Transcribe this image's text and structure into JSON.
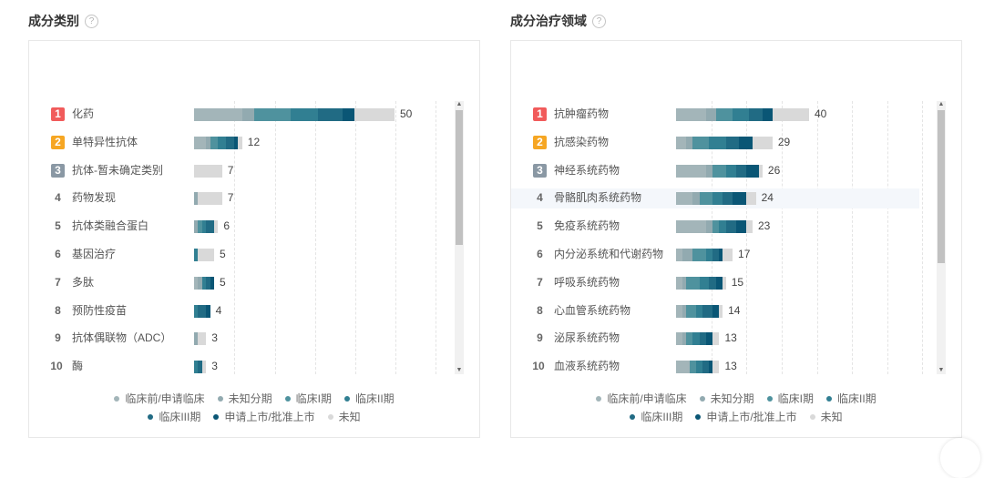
{
  "legend": [
    "临床前/申请临床",
    "未知分期",
    "临床I期",
    "临床II期",
    "临床III期",
    "申请上市/批准上市",
    "未知"
  ],
  "colors": {
    "phase": [
      "#a3b5b9",
      "#92aab0",
      "#4f929e",
      "#317f92",
      "#216b84",
      "#0a5675",
      "#d9d9d9"
    ],
    "rank1": "#f15b5b",
    "rank2": "#f6a623",
    "rank3": "#8a98a4"
  },
  "left": {
    "title": "成分类别",
    "help_icon": "question-circle-icon",
    "chart_data": {
      "type": "bar",
      "orientation": "horizontal",
      "stacked": true,
      "categories": [
        "化药",
        "单特异性抗体",
        "抗体-暂未确定类别",
        "药物发现",
        "抗体类融合蛋白",
        "基因治疗",
        "多肽",
        "预防性疫苗",
        "抗体偶联物（ADC）",
        "酶"
      ],
      "ranks": [
        "1",
        "2",
        "3",
        "4",
        "5",
        "6",
        "7",
        "8",
        "9",
        "10"
      ],
      "totals": [
        50,
        12,
        7,
        7,
        6,
        5,
        5,
        4,
        3,
        3
      ],
      "series": [
        {
          "name": "临床前/申请临床",
          "values": [
            12,
            3,
            0,
            0,
            0,
            0,
            1,
            0,
            0,
            0
          ]
        },
        {
          "name": "未知分期",
          "values": [
            3,
            1,
            0,
            1,
            1,
            0,
            1,
            0,
            1,
            0
          ]
        },
        {
          "name": "临床I期",
          "values": [
            9,
            2,
            0,
            0,
            1,
            0,
            0,
            0,
            0,
            0
          ]
        },
        {
          "name": "临床II期",
          "values": [
            7,
            2,
            0,
            0,
            1,
            1,
            1,
            1,
            0,
            1
          ]
        },
        {
          "name": "临床III期",
          "values": [
            6,
            2,
            0,
            0,
            2,
            0,
            1,
            2,
            0,
            1
          ]
        },
        {
          "name": "申请上市/批准上市",
          "values": [
            3,
            1,
            0,
            0,
            0,
            0,
            1,
            1,
            0,
            0
          ]
        },
        {
          "name": "未知",
          "values": [
            10,
            1,
            7,
            6,
            1,
            4,
            0,
            0,
            2,
            1
          ]
        }
      ],
      "xlim": [
        0,
        66
      ],
      "legend_position": "bottom",
      "grid": true
    }
  },
  "right": {
    "title": "成分治疗领域",
    "help_icon": "question-circle-icon",
    "chart_data": {
      "type": "bar",
      "orientation": "horizontal",
      "stacked": true,
      "categories": [
        "抗肿瘤药物",
        "抗感染药物",
        "神经系统药物",
        "骨骼肌肉系统药物",
        "免疫系统药物",
        "内分泌系统和代谢药物",
        "呼吸系统药物",
        "心血管系统药物",
        "泌尿系统药物",
        "血液系统药物"
      ],
      "ranks": [
        "1",
        "2",
        "3",
        "4",
        "5",
        "6",
        "7",
        "8",
        "9",
        "10"
      ],
      "totals": [
        40,
        29,
        26,
        24,
        23,
        17,
        15,
        14,
        13,
        13
      ],
      "series": [
        {
          "name": "临床前/申请临床",
          "values": [
            9,
            3,
            9,
            5,
            9,
            2,
            2,
            2,
            2,
            4
          ]
        },
        {
          "name": "未知分期",
          "values": [
            3,
            2,
            2,
            2,
            2,
            3,
            1,
            1,
            1,
            0
          ]
        },
        {
          "name": "临床I期",
          "values": [
            5,
            5,
            4,
            4,
            2,
            4,
            4,
            3,
            2,
            2
          ]
        },
        {
          "name": "临床II期",
          "values": [
            5,
            5,
            3,
            3,
            2,
            2,
            3,
            2,
            2,
            2
          ]
        },
        {
          "name": "临床III期",
          "values": [
            4,
            4,
            3,
            3,
            3,
            2,
            2,
            3,
            2,
            2
          ]
        },
        {
          "name": "申请上市/批准上市",
          "values": [
            3,
            4,
            4,
            4,
            3,
            1,
            2,
            2,
            2,
            1
          ]
        },
        {
          "name": "未知",
          "values": [
            11,
            6,
            1,
            3,
            2,
            3,
            1,
            1,
            2,
            2
          ]
        }
      ],
      "xlim": [
        0,
        53
      ],
      "legend_position": "bottom",
      "grid": true
    }
  }
}
